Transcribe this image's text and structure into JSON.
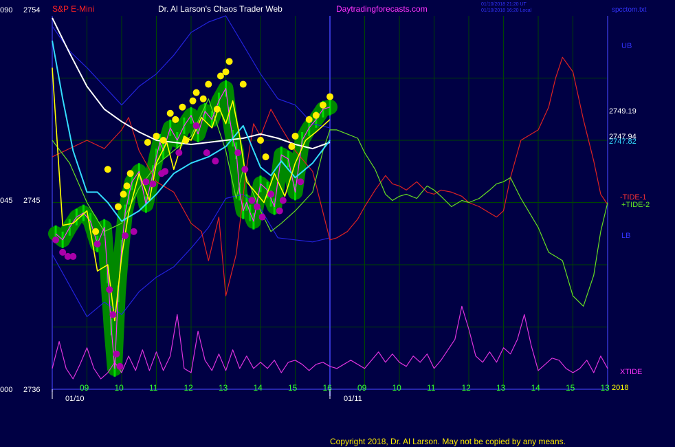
{
  "header": {
    "left_title": "S&P E-Mini",
    "center_title": "Dr. Al Larson's Chaos Trader Web",
    "site": "Daytradingforecasts.com",
    "timestamp1": "01/10/2018 21:20 UT",
    "timestamp2": "01/10/2018 16:20 Local",
    "filename": "spcctom.txt"
  },
  "footer": {
    "copyright": "Copyright 2018, Dr. Al Larson. May not be copied by any means."
  },
  "colors": {
    "background": "#000044",
    "grid": "#004400",
    "frame": "#3333cc",
    "price_bars": "#00dd00",
    "halo": "#008800",
    "highs": "#ffee00",
    "lows": "#aa00aa",
    "yellow_line": "#ffff00",
    "white_line": "#ffffff",
    "cyan_line": "#33ddff",
    "bands": "#2222dd",
    "tide_minus": "#dd2222",
    "tide_plus": "#66dd22",
    "xtide": "#dd33dd"
  },
  "chart_data": {
    "type": "line",
    "title": "S&P E-Mini",
    "ylim": [
      2736,
      2754
    ],
    "y_ticks": [
      {
        "value": 2754,
        "left": "090",
        "right": "2754"
      },
      {
        "value": 2745,
        "left": "045",
        "right": "2745"
      },
      {
        "value": 2736,
        "left": "000",
        "right": "2736"
      }
    ],
    "x_hour_labels": [
      "09",
      "10",
      "11",
      "12",
      "13",
      "14",
      "15",
      "16",
      "09",
      "10",
      "11",
      "12",
      "13",
      "14",
      "15",
      "13"
    ],
    "x_date_labels": [
      "01/10",
      "01/11"
    ],
    "year_label": "2018",
    "right_labels": {
      "ub": "UB",
      "lb": "LB",
      "tide_minus": "-TIDE-1",
      "tide_plus": "+TIDE-2",
      "xtide": "XTIDE",
      "value1": "2749.19",
      "value2": "2747.94",
      "value3": "2747.82"
    },
    "series": [
      {
        "name": "XTIDE",
        "x": [
          0,
          0.2,
          0.4,
          0.6,
          0.8,
          1.0,
          1.2,
          1.4,
          1.6,
          1.8,
          2.0,
          2.2,
          2.4,
          2.6,
          2.8,
          3.0,
          3.2,
          3.4,
          3.6,
          3.8,
          4.0,
          4.2,
          4.4,
          4.6,
          4.8,
          5.0,
          5.2,
          5.4,
          5.6,
          5.8,
          6.0,
          6.2,
          6.4,
          6.6,
          6.8,
          7.0,
          7.2,
          7.4,
          7.6,
          7.8,
          8.0,
          8.2,
          8.4,
          8.6,
          8.8,
          9.0,
          9.2,
          9.4,
          9.6,
          9.8,
          10.0,
          10.2,
          10.4,
          10.6,
          10.8,
          11.0,
          11.2,
          11.4,
          11.6,
          11.8,
          12.0,
          12.2,
          12.4,
          12.6,
          12.8,
          13.0,
          13.2,
          13.4,
          13.6,
          13.8,
          14.0,
          14.2,
          14.4,
          14.6,
          14.8,
          15.0,
          15.2,
          15.4,
          15.6,
          15.8,
          16.0
        ],
        "y": [
          2737.0,
          2738.3,
          2737.0,
          2736.5,
          2737.2,
          2738.0,
          2737.0,
          2736.5,
          2736.8,
          2737.3,
          2736.8,
          2737.6,
          2736.9,
          2737.9,
          2736.9,
          2737.8,
          2736.9,
          2737.6,
          2739.6,
          2737.0,
          2736.8,
          2738.8,
          2737.4,
          2736.9,
          2737.7,
          2736.9,
          2737.9,
          2737.0,
          2737.6,
          2737.0,
          2737.3,
          2737.0,
          2737.4,
          2736.8,
          2737.3,
          2737.4,
          2737.2,
          2736.9,
          2737.2,
          2737.3,
          2737.1,
          2737.0,
          2737.2,
          2737.4,
          2737.2,
          2737.0,
          2737.4,
          2737.8,
          2737.3,
          2737.7,
          2737.3,
          2737.1,
          2737.6,
          2737.3,
          2737.7,
          2737.0,
          2737.4,
          2737.9,
          2738.4,
          2740.0,
          2738.9,
          2737.6,
          2737.3,
          2737.8,
          2737.3,
          2738.0,
          2737.7,
          2738.4,
          2739.6,
          2738.1,
          2736.9,
          2737.2,
          2737.5,
          2737.4,
          2737.0,
          2736.8,
          2737.0,
          2737.4,
          2736.8,
          2737.6,
          2737.0
        ]
      },
      {
        "name": "-TIDE-1",
        "x": [
          0,
          1,
          1.5,
          2,
          2.2,
          2.5,
          3,
          3.5,
          4,
          4.3,
          4.5,
          4.8,
          5,
          5.3,
          5.6,
          5.8,
          6,
          6.3,
          6.6,
          7,
          7.5,
          8,
          8.2,
          8.5,
          8.8,
          9,
          9.3,
          9.6,
          9.8,
          10,
          10.2,
          10.5,
          10.8,
          11,
          11.2,
          11.5,
          11.8,
          12,
          12.3,
          12.6,
          12.8,
          13,
          13.2,
          13.5,
          14,
          14.3,
          14.5,
          14.7,
          15,
          15.3,
          15.6,
          15.8,
          16
        ],
        "y": [
          2747.2,
          2748.0,
          2747.6,
          2748.5,
          2749.1,
          2747.5,
          2746.0,
          2745.5,
          2744.0,
          2743.6,
          2742.2,
          2744.3,
          2740.5,
          2742.5,
          2746.7,
          2748.8,
          2748.2,
          2749.5,
          2748.6,
          2747.5,
          2746.5,
          2743.2,
          2743.3,
          2743.6,
          2744.2,
          2744.8,
          2745.6,
          2746.3,
          2745.9,
          2745.8,
          2745.6,
          2746.0,
          2745.5,
          2745.4,
          2745.6,
          2745.5,
          2745.3,
          2745.0,
          2744.8,
          2744.5,
          2744.3,
          2744.6,
          2746.2,
          2748.0,
          2748.5,
          2749.6,
          2751.0,
          2752.0,
          2751.3,
          2749.0,
          2747.0,
          2745.4,
          2744.9
        ]
      },
      {
        "name": "+TIDE-2",
        "x": [
          0,
          0.5,
          1,
          1.5,
          2,
          2.5,
          3,
          3.5,
          4,
          4.5,
          5,
          5.3,
          5.5,
          6,
          6.3,
          6.6,
          7,
          7.5,
          7.8,
          8,
          8.2,
          8.5,
          8.8,
          9,
          9.3,
          9.6,
          9.8,
          10,
          10.2,
          10.5,
          10.8,
          11,
          11.2,
          11.5,
          11.8,
          12,
          12.3,
          12.6,
          12.8,
          13,
          13.2,
          13.5,
          14,
          14.3,
          14.5,
          14.7,
          15,
          15.3,
          15.6,
          15.8,
          16
        ],
        "y": [
          2748.0,
          2746.9,
          2745.0,
          2743.6,
          2744.0,
          2745.7,
          2746.8,
          2747.5,
          2748.2,
          2750.0,
          2747.5,
          2745.2,
          2746.6,
          2744.6,
          2743.6,
          2744.0,
          2744.6,
          2745.5,
          2747.5,
          2748.5,
          2748.5,
          2748.3,
          2748.1,
          2747.4,
          2746.6,
          2745.4,
          2745.1,
          2745.3,
          2745.4,
          2745.2,
          2745.8,
          2745.6,
          2745.3,
          2744.8,
          2745.1,
          2745.0,
          2745.2,
          2745.6,
          2745.9,
          2746.0,
          2746.2,
          2745.2,
          2743.8,
          2742.6,
          2742.4,
          2742.2,
          2740.5,
          2740.0,
          2741.5,
          2743.6,
          2745.0
        ]
      },
      {
        "name": "UB",
        "x": [
          0,
          0.5,
          1,
          1.5,
          2,
          2.5,
          3,
          3.5,
          4,
          4.5,
          5,
          5.5,
          6,
          6.5,
          7,
          7.5,
          8
        ],
        "y": [
          2753.5,
          2752.3,
          2751.5,
          2750.6,
          2749.7,
          2750.6,
          2751.2,
          2752.1,
          2753.2,
          2753.7,
          2754.0,
          2752.6,
          2751.2,
          2750.0,
          2749.7,
          2748.8,
          2748.6
        ]
      },
      {
        "name": "LB",
        "x": [
          0,
          0.5,
          1,
          1.5,
          2,
          2.5,
          3,
          3.5,
          4,
          4.5,
          5,
          5.5,
          6,
          6.5,
          7,
          7.5,
          8
        ],
        "y": [
          2742.5,
          2741.0,
          2739.5,
          2740.2,
          2739.6,
          2740.7,
          2741.4,
          2741.9,
          2742.8,
          2743.8,
          2745.2,
          2745.4,
          2744.7,
          2743.3,
          2743.2,
          2743.1,
          2743.3
        ]
      },
      {
        "name": "slow avg",
        "x": [
          0,
          0.5,
          1,
          1.5,
          2,
          2.5,
          3,
          3.5,
          4,
          4.5,
          5,
          5.5,
          6,
          6.5,
          7,
          7.5,
          8
        ],
        "y": [
          2753.9,
          2752.2,
          2750.6,
          2749.5,
          2748.9,
          2748.4,
          2748.0,
          2747.9,
          2747.8,
          2747.9,
          2748.0,
          2748.1,
          2748.3,
          2748.1,
          2747.8,
          2747.6,
          2747.9
        ]
      },
      {
        "name": "cyan avg",
        "x": [
          0,
          0.3,
          0.6,
          1,
          1.3,
          1.6,
          2,
          2.5,
          3,
          3.5,
          4,
          4.5,
          5,
          5.5,
          6,
          6.3,
          6.6,
          7,
          7.5,
          8
        ],
        "y": [
          2752.8,
          2750.0,
          2747.5,
          2745.5,
          2745.5,
          2745.0,
          2744.1,
          2744.6,
          2745.4,
          2746.4,
          2746.9,
          2747.2,
          2747.7,
          2748.7,
          2746.7,
          2746.3,
          2747.0,
          2746.2,
          2746.9,
          2748.0
        ]
      },
      {
        "name": "yellow avg",
        "x": [
          0,
          0.3,
          0.6,
          1,
          1.3,
          1.6,
          1.8,
          2.0,
          2.2,
          2.5,
          2.8,
          3.0,
          3.3,
          3.5,
          3.8,
          4.0,
          4.3,
          4.6,
          4.8,
          5.0,
          5.2,
          5.4,
          5.6,
          5.9,
          6.1,
          6.4,
          6.7,
          7.0,
          7.3,
          7.6,
          8.0
        ],
        "y": [
          2751.5,
          2743.9,
          2744.0,
          2744.6,
          2741.7,
          2742.0,
          2739.3,
          2742.4,
          2744.5,
          2746.4,
          2745.1,
          2746.9,
          2747.9,
          2746.6,
          2748.2,
          2748.0,
          2749.1,
          2748.6,
          2749.6,
          2748.8,
          2749.9,
          2748.2,
          2746.0,
          2745.4,
          2745.0,
          2746.4,
          2745.3,
          2746.9,
          2748.0,
          2748.4,
          2749.0
        ]
      },
      {
        "name": "price",
        "x": [
          0.1,
          0.3,
          0.5,
          0.7,
          0.9,
          1.1,
          1.3,
          1.5,
          1.6,
          1.7,
          1.8,
          1.9,
          2.0,
          2.1,
          2.2,
          2.3,
          2.5,
          2.7,
          2.9,
          3.0,
          3.1,
          3.2,
          3.4,
          3.6,
          3.8,
          4.0,
          4.2,
          4.4,
          4.6,
          4.8,
          5.0,
          5.1,
          5.2,
          5.3,
          5.4,
          5.5,
          5.6,
          5.7,
          5.8,
          6.0,
          6.2,
          6.3,
          6.4,
          6.6,
          6.8,
          7.0,
          7.2,
          7.4,
          7.6,
          7.8,
          8.0
        ],
        "y": [
          2743.5,
          2743.2,
          2743.8,
          2744.3,
          2744.5,
          2744.1,
          2743.0,
          2743.8,
          2741.5,
          2739.0,
          2737.0,
          2740.6,
          2742.8,
          2744.5,
          2745.3,
          2746.0,
          2746.5,
          2744.9,
          2746.4,
          2747.2,
          2747.9,
          2747.5,
          2748.6,
          2748.0,
          2748.7,
          2749.2,
          2748.3,
          2749.4,
          2749.0,
          2749.9,
          2750.5,
          2749.2,
          2748.1,
          2747.5,
          2745.5,
          2744.6,
          2745.0,
          2744.5,
          2744.1,
          2745.9,
          2745.6,
          2745.2,
          2744.8,
          2747.3,
          2747.1,
          2745.5,
          2748.0,
          2748.6,
          2749.0,
          2749.5,
          2749.6
        ]
      },
      {
        "name": "highs",
        "x": [
          1.25,
          1.6,
          1.9,
          2.05,
          2.15,
          2.25,
          2.75,
          3.0,
          3.2,
          3.4,
          3.55,
          3.75,
          3.85,
          4.05,
          4.15,
          4.35,
          4.5,
          4.75,
          4.85,
          5.0,
          5.1,
          5.5,
          6.0,
          6.15,
          6.9,
          7.0,
          7.4,
          7.6,
          7.8,
          8.0
        ],
        "y": [
          2743.6,
          2746.6,
          2744.8,
          2745.4,
          2745.8,
          2746.4,
          2747.9,
          2748.2,
          2748.0,
          2749.3,
          2749.0,
          2749.6,
          2748.0,
          2749.9,
          2750.3,
          2750.0,
          2750.7,
          2749.5,
          2751.1,
          2751.3,
          2751.8,
          2750.7,
          2748.0,
          2747.2,
          2747.7,
          2748.2,
          2749.0,
          2749.2,
          2749.7,
          2750.1
        ]
      },
      {
        "name": "lows",
        "x": [
          0.1,
          0.3,
          0.45,
          0.6,
          1.3,
          1.65,
          1.75,
          1.85,
          1.95,
          2.1,
          2.35,
          2.7,
          2.9,
          3.15,
          3.25,
          3.65,
          4.15,
          4.45,
          4.7,
          5.35,
          5.55,
          5.75,
          5.9,
          6.05,
          6.3,
          6.55,
          6.65,
          7.15
        ],
        "y": [
          2743.2,
          2742.6,
          2742.4,
          2742.4,
          2743.0,
          2740.8,
          2739.6,
          2737.7,
          2737.1,
          2743.4,
          2743.6,
          2746.0,
          2745.9,
          2746.4,
          2746.5,
          2747.4,
          2748.7,
          2747.4,
          2747.0,
          2747.4,
          2746.6,
          2745.1,
          2744.8,
          2744.3,
          2745.4,
          2744.6,
          2745.1,
          2746.0
        ]
      }
    ]
  }
}
